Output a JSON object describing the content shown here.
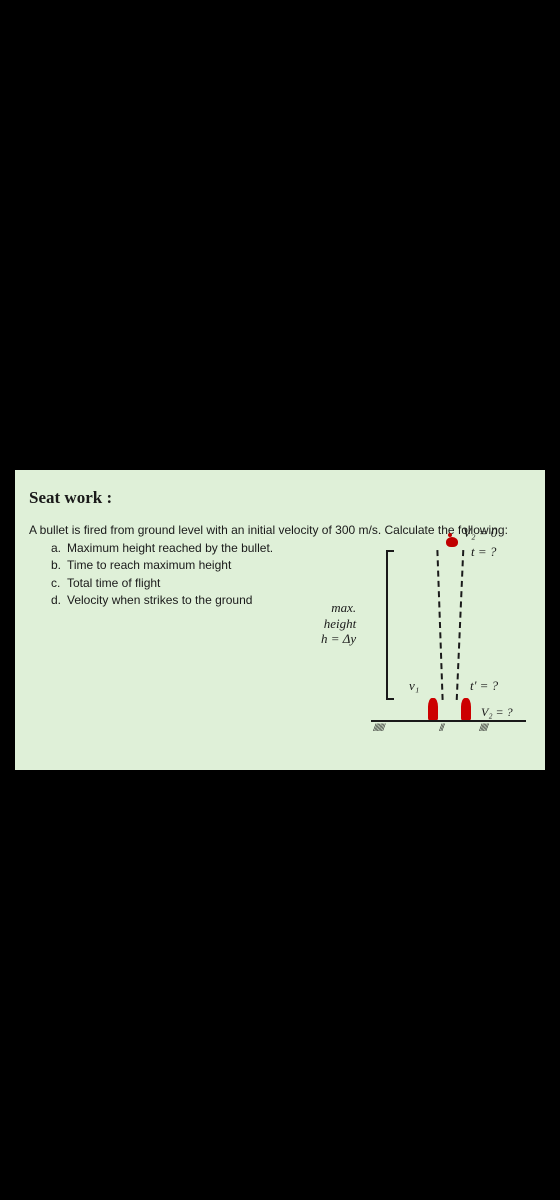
{
  "title": "Seat work :",
  "problem": {
    "intro": "A bullet is fired from ground level with an initial velocity of 300 m/s. Calculate the following:",
    "items": [
      {
        "letter": "a.",
        "text": "Maximum height reached by the bullet."
      },
      {
        "letter": "b.",
        "text": "Time to reach maximum height"
      },
      {
        "letter": "c.",
        "text": "Total time of flight"
      },
      {
        "letter": "d.",
        "text": "Velocity when strikes to the ground"
      }
    ]
  },
  "diagram": {
    "max_label_line1": "max.",
    "max_label_line2": "height",
    "max_label_line3": "h = Δy",
    "v2_top": "V₂ = 0",
    "t_top": "t = ?",
    "v1": "v₁",
    "t_prime": "t' = ?",
    "v2_bottom": "V₂ = ?",
    "colors": {
      "background": "#dff0d8",
      "text": "#1a1a1a",
      "rocket": "#cc0000",
      "page_bg": "#000000"
    }
  }
}
